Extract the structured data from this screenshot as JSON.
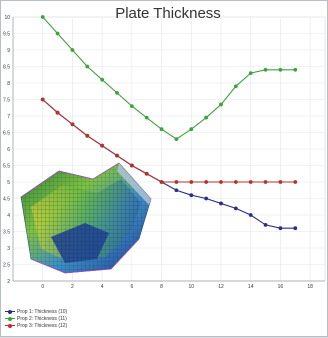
{
  "chart_data": {
    "type": "line",
    "title": "Plate Thickness",
    "xlabel": "",
    "ylabel": "",
    "xlim": [
      -2,
      19
    ],
    "ylim": [
      2,
      10
    ],
    "x_ticks": [
      "0",
      "2",
      "4",
      "6",
      "8",
      "10",
      "12",
      "14",
      "16",
      "18"
    ],
    "y_ticks": [
      "2",
      "2.5",
      "3",
      "3.5",
      "4",
      "4.5",
      "5",
      "5.5",
      "6",
      "6.5",
      "7",
      "7.5",
      "8",
      "8.5",
      "9",
      "9.5",
      "10"
    ],
    "grid": true,
    "legend_position": "bottom-left",
    "series": [
      {
        "name": "Prop 1: Thickness (10)",
        "color": "#2b2d8c",
        "x": [
          0,
          1,
          2,
          3,
          4,
          5,
          6,
          7,
          8,
          9,
          10,
          11,
          12,
          13,
          14,
          15,
          16,
          17
        ],
        "y": [
          7.5,
          7.1,
          6.75,
          6.4,
          6.1,
          5.8,
          5.5,
          5.25,
          5.0,
          4.75,
          4.6,
          4.5,
          4.35,
          4.2,
          4.0,
          3.7,
          3.6,
          3.6
        ]
      },
      {
        "name": "Prop 2: Thickness (11)",
        "color": "#3ea33e",
        "x": [
          0,
          1,
          2,
          3,
          4,
          5,
          6,
          7,
          8,
          9,
          10,
          11,
          12,
          13,
          14,
          15,
          16,
          17
        ],
        "y": [
          10.0,
          9.5,
          9.0,
          8.5,
          8.1,
          7.7,
          7.3,
          6.95,
          6.6,
          6.3,
          6.6,
          6.95,
          7.35,
          7.9,
          8.3,
          8.4,
          8.4,
          8.4
        ]
      },
      {
        "name": "Prop 3: Thickness (12)",
        "color": "#b0342a",
        "x": [
          0,
          1,
          2,
          3,
          4,
          5,
          6,
          7,
          8,
          9,
          10,
          11,
          12,
          13,
          14,
          15,
          16,
          17
        ],
        "y": [
          7.5,
          7.1,
          6.75,
          6.4,
          6.1,
          5.8,
          5.5,
          5.25,
          5.0,
          5.0,
          5.0,
          5.0,
          5.0,
          5.0,
          5.0,
          5.0,
          5.0,
          5.0
        ]
      }
    ]
  }
}
